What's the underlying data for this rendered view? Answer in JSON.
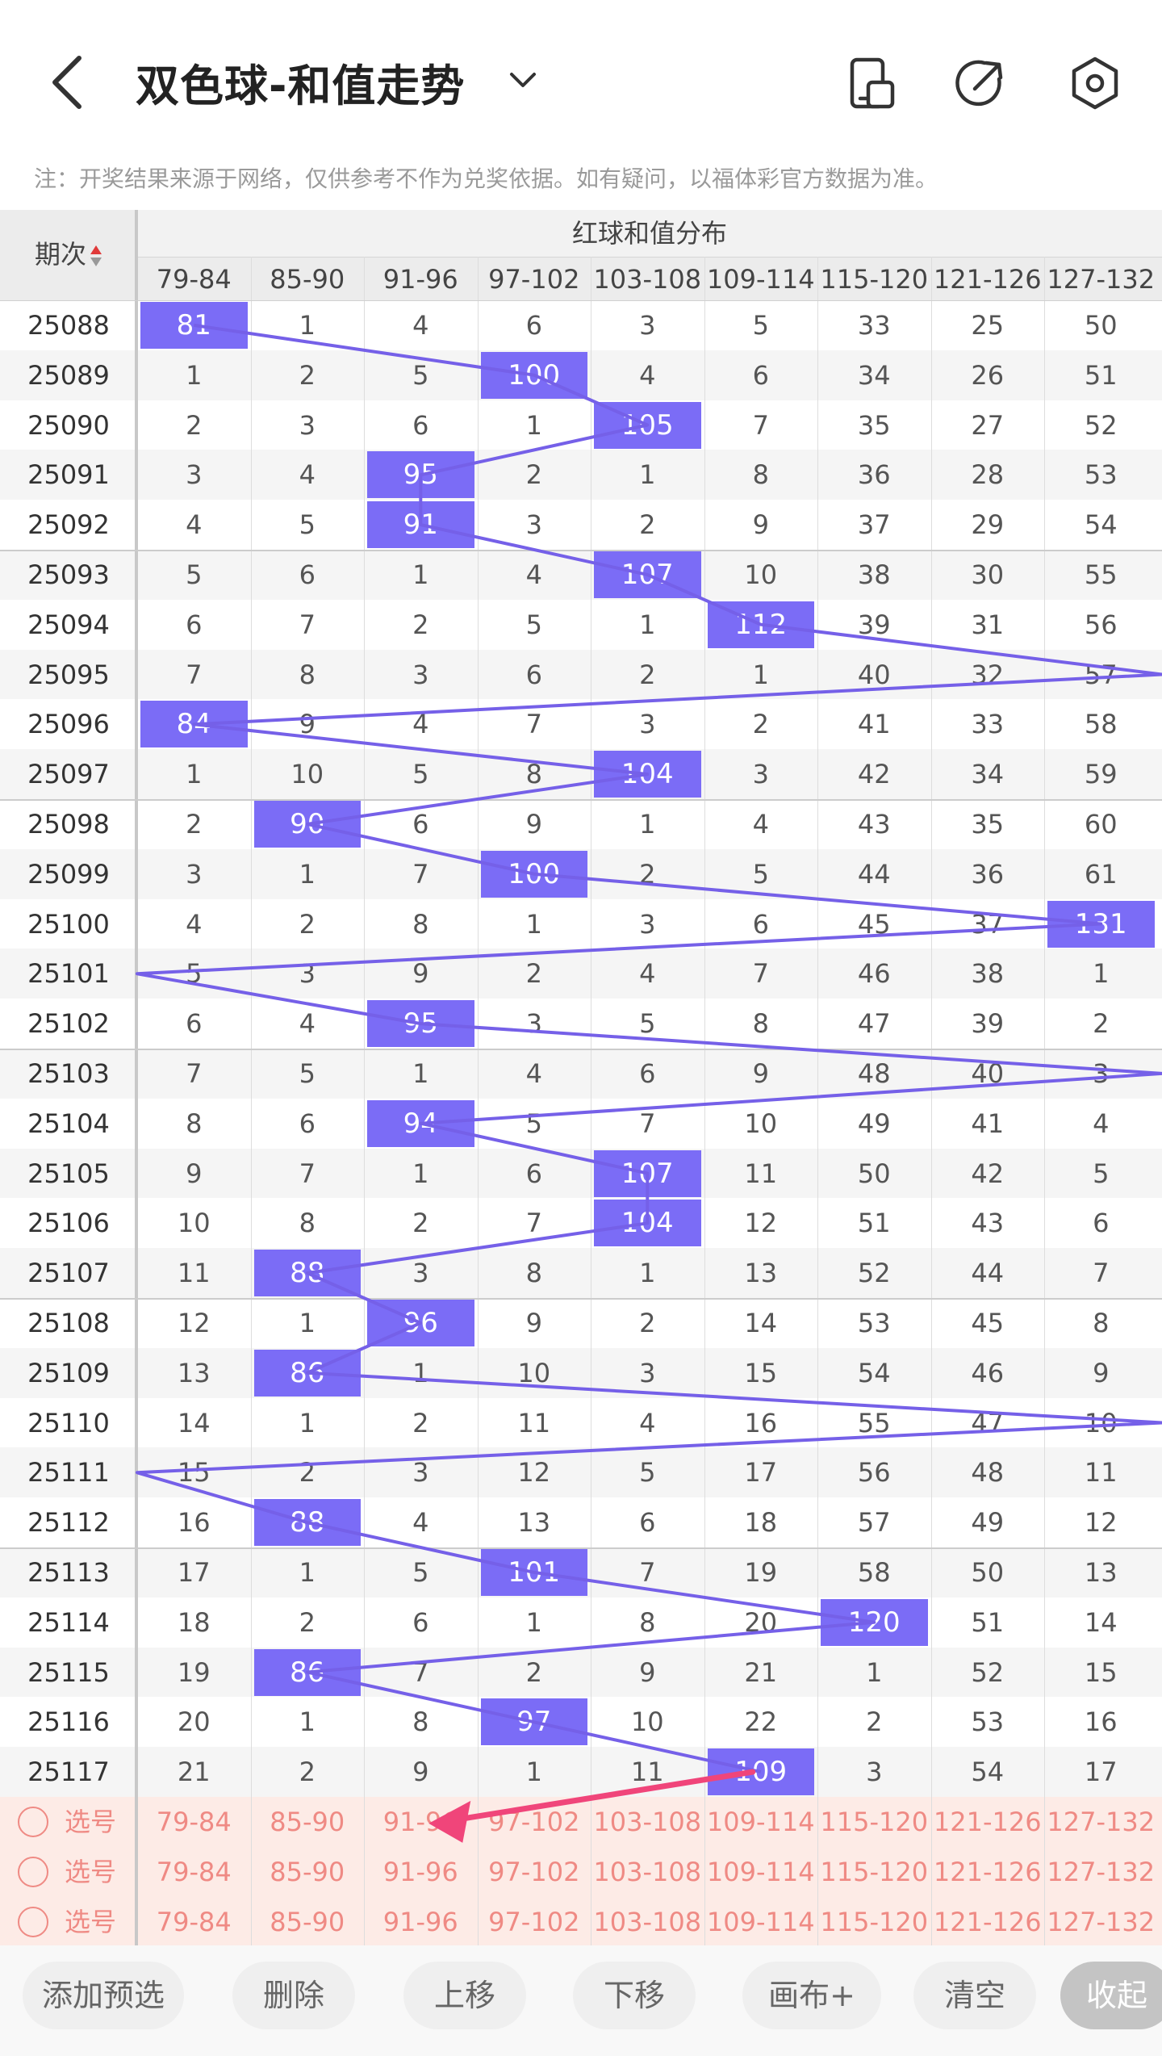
{
  "header": {
    "title": "双色球-和值走势",
    "notice": "注：开奖结果来源于网络，仅供参考不作为兑奖依据。如有疑问，以福体彩官方数据为准。"
  },
  "table": {
    "issue_header": "期次",
    "group_header": "红球和值分布",
    "columns": [
      "79-84",
      "85-90",
      "91-96",
      "97-102",
      "103-108",
      "109-114",
      "115-120",
      "121-126",
      "127-132"
    ],
    "rows": [
      {
        "issue": "25088",
        "cells": [
          "81",
          "1",
          "4",
          "6",
          "3",
          "5",
          "33",
          "25",
          "50"
        ],
        "hit": 0
      },
      {
        "issue": "25089",
        "cells": [
          "1",
          "2",
          "5",
          "100",
          "4",
          "6",
          "34",
          "26",
          "51"
        ],
        "hit": 3
      },
      {
        "issue": "25090",
        "cells": [
          "2",
          "3",
          "6",
          "1",
          "105",
          "7",
          "35",
          "27",
          "52"
        ],
        "hit": 4
      },
      {
        "issue": "25091",
        "cells": [
          "3",
          "4",
          "95",
          "2",
          "1",
          "8",
          "36",
          "28",
          "53"
        ],
        "hit": 2
      },
      {
        "issue": "25092",
        "cells": [
          "4",
          "5",
          "91",
          "3",
          "2",
          "9",
          "37",
          "29",
          "54"
        ],
        "hit": 2
      },
      {
        "issue": "25093",
        "cells": [
          "5",
          "6",
          "1",
          "4",
          "107",
          "10",
          "38",
          "30",
          "55"
        ],
        "hit": 4
      },
      {
        "issue": "25094",
        "cells": [
          "6",
          "7",
          "2",
          "5",
          "1",
          "112",
          "39",
          "31",
          "56"
        ],
        "hit": 5
      },
      {
        "issue": "25095",
        "cells": [
          "7",
          "8",
          "3",
          "6",
          "2",
          "1",
          "40",
          "32",
          "57"
        ],
        "hit": -1
      },
      {
        "issue": "25096",
        "cells": [
          "84",
          "9",
          "4",
          "7",
          "3",
          "2",
          "41",
          "33",
          "58"
        ],
        "hit": 0
      },
      {
        "issue": "25097",
        "cells": [
          "1",
          "10",
          "5",
          "8",
          "104",
          "3",
          "42",
          "34",
          "59"
        ],
        "hit": 4
      },
      {
        "issue": "25098",
        "cells": [
          "2",
          "90",
          "6",
          "9",
          "1",
          "4",
          "43",
          "35",
          "60"
        ],
        "hit": 1
      },
      {
        "issue": "25099",
        "cells": [
          "3",
          "1",
          "7",
          "100",
          "2",
          "5",
          "44",
          "36",
          "61"
        ],
        "hit": 3
      },
      {
        "issue": "25100",
        "cells": [
          "4",
          "2",
          "8",
          "1",
          "3",
          "6",
          "45",
          "37",
          "131"
        ],
        "hit": 8
      },
      {
        "issue": "25101",
        "cells": [
          "5",
          "3",
          "9",
          "2",
          "4",
          "7",
          "46",
          "38",
          "1"
        ],
        "hit": -1
      },
      {
        "issue": "25102",
        "cells": [
          "6",
          "4",
          "95",
          "3",
          "5",
          "8",
          "47",
          "39",
          "2"
        ],
        "hit": 2
      },
      {
        "issue": "25103",
        "cells": [
          "7",
          "5",
          "1",
          "4",
          "6",
          "9",
          "48",
          "40",
          "3"
        ],
        "hit": -1
      },
      {
        "issue": "25104",
        "cells": [
          "8",
          "6",
          "94",
          "5",
          "7",
          "10",
          "49",
          "41",
          "4"
        ],
        "hit": 2
      },
      {
        "issue": "25105",
        "cells": [
          "9",
          "7",
          "1",
          "6",
          "107",
          "11",
          "50",
          "42",
          "5"
        ],
        "hit": 4
      },
      {
        "issue": "25106",
        "cells": [
          "10",
          "8",
          "2",
          "7",
          "104",
          "12",
          "51",
          "43",
          "6"
        ],
        "hit": 4
      },
      {
        "issue": "25107",
        "cells": [
          "11",
          "88",
          "3",
          "8",
          "1",
          "13",
          "52",
          "44",
          "7"
        ],
        "hit": 1
      },
      {
        "issue": "25108",
        "cells": [
          "12",
          "1",
          "96",
          "9",
          "2",
          "14",
          "53",
          "45",
          "8"
        ],
        "hit": 2
      },
      {
        "issue": "25109",
        "cells": [
          "13",
          "86",
          "1",
          "10",
          "3",
          "15",
          "54",
          "46",
          "9"
        ],
        "hit": 1
      },
      {
        "issue": "25110",
        "cells": [
          "14",
          "1",
          "2",
          "11",
          "4",
          "16",
          "55",
          "47",
          "10"
        ],
        "hit": -1
      },
      {
        "issue": "25111",
        "cells": [
          "15",
          "2",
          "3",
          "12",
          "5",
          "17",
          "56",
          "48",
          "11"
        ],
        "hit": -1
      },
      {
        "issue": "25112",
        "cells": [
          "16",
          "88",
          "4",
          "13",
          "6",
          "18",
          "57",
          "49",
          "12"
        ],
        "hit": 1
      },
      {
        "issue": "25113",
        "cells": [
          "17",
          "1",
          "5",
          "101",
          "7",
          "19",
          "58",
          "50",
          "13"
        ],
        "hit": 3
      },
      {
        "issue": "25114",
        "cells": [
          "18",
          "2",
          "6",
          "1",
          "8",
          "20",
          "120",
          "51",
          "14"
        ],
        "hit": 6
      },
      {
        "issue": "25115",
        "cells": [
          "19",
          "86",
          "7",
          "2",
          "9",
          "21",
          "1",
          "52",
          "15"
        ],
        "hit": 1
      },
      {
        "issue": "25116",
        "cells": [
          "20",
          "1",
          "8",
          "97",
          "10",
          "22",
          "2",
          "53",
          "16"
        ],
        "hit": 3
      },
      {
        "issue": "25117",
        "cells": [
          "21",
          "2",
          "9",
          "1",
          "11",
          "109",
          "3",
          "54",
          "17"
        ],
        "hit": 5
      }
    ]
  },
  "pick_rows": [
    {
      "label": "选号"
    },
    {
      "label": "选号"
    },
    {
      "label": "选号"
    }
  ],
  "toolbar": {
    "add_preselect": "添加预选",
    "delete": "删除",
    "move_up": "上移",
    "move_down": "下移",
    "canvas_plus": "画布+",
    "clear": "清空",
    "collapse": "收起"
  },
  "colors": {
    "highlight": "#7b6cf6",
    "trend_line": "#7560e8",
    "pick_text": "#ef8a84",
    "pick_bg": "#fdebe6",
    "arrow": "#f0457a"
  },
  "icons": {
    "back": "back-chevron-icon",
    "dropdown": "chevron-down-icon",
    "device": "device-switch-icon",
    "share": "share-arrow-icon",
    "settings": "settings-hex-icon"
  }
}
